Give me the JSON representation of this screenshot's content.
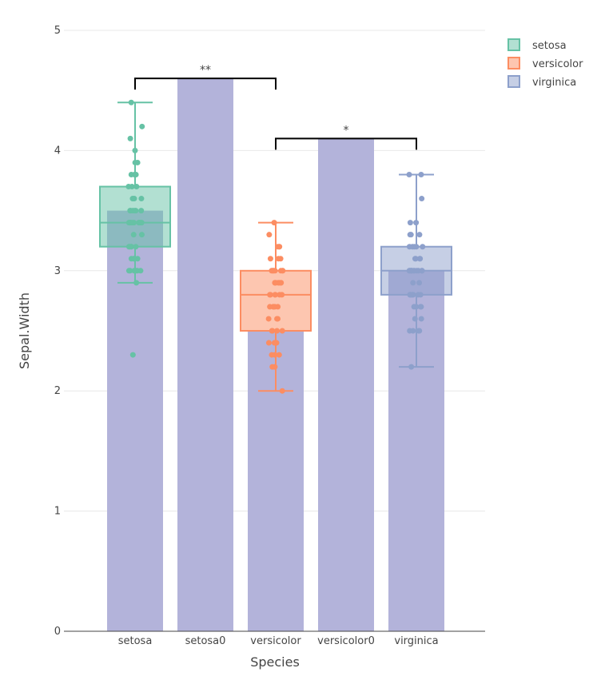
{
  "chart_data": {
    "type": "bar",
    "title": "",
    "xlabel": "Species",
    "ylabel": "Sepal.Width",
    "ylim": [
      0,
      5
    ],
    "yticks": [
      "0",
      "1",
      "2",
      "3",
      "4",
      "5"
    ],
    "grid": true,
    "legend_placement": "top-right",
    "categories": [
      "setosa",
      "setosa0",
      "versicolor",
      "versicolor0",
      "virginica"
    ],
    "bars": {
      "values": [
        3.5,
        4.6,
        2.5,
        4.1,
        3.0
      ],
      "color": "#b3b3da"
    },
    "boxes": [
      {
        "name": "setosa",
        "category": "setosa",
        "color": "#66c2a5",
        "q1": 3.2,
        "median": 3.4,
        "q3": 3.7,
        "lower": 2.9,
        "upper": 4.4,
        "points": [
          3.5,
          3.0,
          3.2,
          3.1,
          3.6,
          3.9,
          3.4,
          3.4,
          2.9,
          3.1,
          3.7,
          3.4,
          3.0,
          3.0,
          4.0,
          4.4,
          3.9,
          3.5,
          3.8,
          3.8,
          3.4,
          3.7,
          3.6,
          3.3,
          3.4,
          3.0,
          3.4,
          3.5,
          3.4,
          3.2,
          3.1,
          3.4,
          4.1,
          4.2,
          3.1,
          3.2,
          3.5,
          3.6,
          3.0,
          3.4,
          3.5,
          2.3,
          3.2,
          3.5,
          3.8,
          3.0,
          3.8,
          3.2,
          3.7,
          3.3
        ]
      },
      {
        "name": "versicolor",
        "category": "versicolor",
        "color": "#fc8d62",
        "q1": 2.5,
        "median": 2.8,
        "q3": 3.0,
        "lower": 2.0,
        "upper": 3.4,
        "points": [
          3.2,
          3.2,
          3.1,
          2.3,
          2.8,
          2.8,
          3.3,
          2.4,
          2.9,
          2.7,
          2.0,
          3.0,
          2.2,
          2.9,
          2.9,
          3.1,
          3.0,
          2.7,
          2.2,
          2.5,
          3.2,
          2.8,
          2.5,
          2.8,
          2.9,
          3.0,
          2.8,
          3.0,
          2.9,
          2.6,
          2.4,
          2.4,
          2.7,
          2.7,
          3.0,
          3.4,
          3.1,
          2.3,
          3.0,
          2.5,
          2.6,
          3.0,
          2.6,
          2.3,
          2.7,
          3.0,
          2.9,
          2.9,
          2.5,
          2.8
        ]
      },
      {
        "name": "virginica",
        "category": "virginica",
        "color": "#8da0cb",
        "q1": 2.8,
        "median": 3.0,
        "q3": 3.2,
        "lower": 2.2,
        "upper": 3.8,
        "points": [
          3.3,
          2.7,
          3.0,
          2.9,
          3.0,
          3.0,
          2.5,
          2.9,
          2.5,
          3.6,
          3.2,
          2.7,
          3.0,
          2.5,
          2.8,
          3.2,
          3.0,
          3.8,
          2.6,
          2.2,
          3.2,
          2.8,
          2.8,
          2.7,
          3.3,
          3.2,
          2.8,
          3.0,
          2.8,
          3.0,
          2.8,
          3.8,
          2.8,
          2.8,
          2.6,
          3.0,
          3.4,
          3.1,
          3.0,
          3.1,
          3.1,
          3.1,
          2.7,
          3.2,
          3.3,
          3.0,
          2.5,
          3.0,
          3.4,
          3.0
        ]
      }
    ],
    "annotations": [
      {
        "from": "setosa",
        "to": "versicolor",
        "y": 4.6,
        "label": "**"
      },
      {
        "from": "versicolor",
        "to": "virginica",
        "y": 4.1,
        "label": "*"
      }
    ],
    "legend": [
      "setosa",
      "versicolor",
      "virginica"
    ]
  }
}
